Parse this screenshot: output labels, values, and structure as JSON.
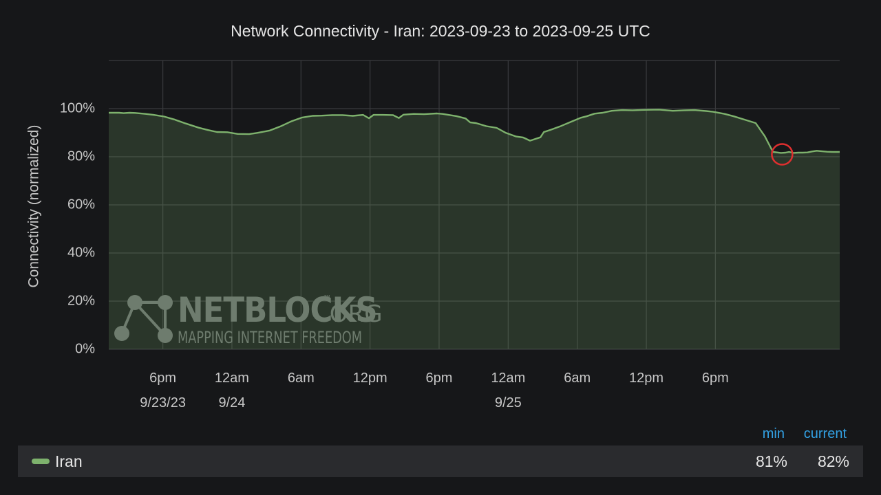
{
  "chart_data": {
    "type": "area",
    "title": "Network Connectivity - Iran: 2023-09-23 to 2023-09-25 UTC",
    "ylabel": "Connectivity (normalized)",
    "xlabel": "",
    "ylim": [
      0,
      120
    ],
    "yticks": [
      "0%",
      "20%",
      "40%",
      "60%",
      "80%",
      "100%"
    ],
    "ytick_values": [
      0,
      20,
      40,
      60,
      80,
      100
    ],
    "xlim": [
      13.3,
      76.8
    ],
    "xticks": [
      {
        "hour": 18,
        "label": "6pm",
        "sublabel": "9/23/23"
      },
      {
        "hour": 24,
        "label": "12am",
        "sublabel": "9/24"
      },
      {
        "hour": 30,
        "label": "6am",
        "sublabel": ""
      },
      {
        "hour": 36,
        "label": "12pm",
        "sublabel": ""
      },
      {
        "hour": 42,
        "label": "6pm",
        "sublabel": ""
      },
      {
        "hour": 48,
        "label": "12am",
        "sublabel": "9/25"
      },
      {
        "hour": 54,
        "label": "6am",
        "sublabel": ""
      },
      {
        "hour": 60,
        "label": "12pm",
        "sublabel": ""
      },
      {
        "hour": 66,
        "label": "6pm",
        "sublabel": ""
      }
    ],
    "grid": true,
    "series": [
      {
        "name": "Iran",
        "color": "#7eb26d",
        "x": [
          13.3,
          14.2,
          14.6,
          15.1,
          15.6,
          16.5,
          17.2,
          18.1,
          19.0,
          20.0,
          21.1,
          21.9,
          22.7,
          23.6,
          24.5,
          25.5,
          26.2,
          27.3,
          28.3,
          29.2,
          30.1,
          31.0,
          31.8,
          32.7,
          33.6,
          34.5,
          35.4,
          35.9,
          36.3,
          37.1,
          38.0,
          38.5,
          38.9,
          39.8,
          40.7,
          41.8,
          42.3,
          43.5,
          44.3,
          44.7,
          45.2,
          46.1,
          47.0,
          47.8,
          48.7,
          49.3,
          49.9,
          50.8,
          51.1,
          51.7,
          52.6,
          53.5,
          54.3,
          54.8,
          55.5,
          56.2,
          57.0,
          57.9,
          58.8,
          59.8,
          61.1,
          62.3,
          63.3,
          64.2,
          65.2,
          65.8,
          66.8,
          67.6,
          68.6,
          69.5,
          70.3,
          70.6,
          71.0,
          71.7,
          72.1,
          72.4,
          72.8,
          73.2,
          73.6,
          74.0,
          74.4,
          74.8,
          75.2,
          75.7,
          76.2,
          76.8
        ],
        "y": [
          98.3,
          98.3,
          98.1,
          98.3,
          98.2,
          97.8,
          97.4,
          96.7,
          95.5,
          93.8,
          92.1,
          91.1,
          90.3,
          90.2,
          89.5,
          89.4,
          89.9,
          90.9,
          92.8,
          94.8,
          96.3,
          97.0,
          97.1,
          97.3,
          97.3,
          97.0,
          97.4,
          96.0,
          97.4,
          97.4,
          97.3,
          96.1,
          97.5,
          97.8,
          97.7,
          98.0,
          97.8,
          96.9,
          95.9,
          94.3,
          94.0,
          92.7,
          92.0,
          89.9,
          88.4,
          88.0,
          86.7,
          88.1,
          90.3,
          91.2,
          92.8,
          94.6,
          96.2,
          96.8,
          97.9,
          98.3,
          99.1,
          99.4,
          99.3,
          99.5,
          99.6,
          99.1,
          99.3,
          99.4,
          99.0,
          98.7,
          97.8,
          96.8,
          95.3,
          94.0,
          88.5,
          85.7,
          82.0,
          81.6,
          81.7,
          82.0,
          81.6,
          81.7,
          81.7,
          81.8,
          82.2,
          82.5,
          82.3,
          82.1,
          82.0,
          82.0
        ]
      }
    ],
    "annotation": {
      "type": "circle",
      "x": 71.8,
      "y": 81,
      "color": "#e02f2f"
    }
  },
  "watermark": {
    "brand": "NETBLOCKS",
    "tld": ".ORG",
    "tm": "™",
    "tagline": "MAPPING INTERNET FREEDOM"
  },
  "legend": {
    "headers": [
      "min",
      "current"
    ],
    "header_color": "#33a2e5",
    "series_name": "Iran",
    "swatch_color": "#7eb26d",
    "values": [
      "81%",
      "82%"
    ]
  }
}
